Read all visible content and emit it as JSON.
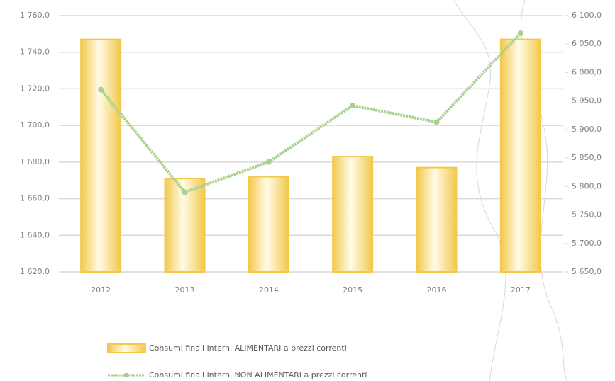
{
  "chart_data": {
    "type": "combo",
    "categories": [
      "2012",
      "2013",
      "2014",
      "2015",
      "2016",
      "2017"
    ],
    "series": [
      {
        "name": "Consumi finali interni ALIMENTARI a prezzi correnti",
        "type": "bar",
        "color": "#f2c94c",
        "values": [
          1747,
          1671,
          1672,
          1683,
          1677,
          1747
        ]
      },
      {
        "name": "Consumi finali interni NON ALIMENTARI a prezzi correnti",
        "type": "line",
        "axis": "y2",
        "color": "#a9d18e",
        "values": [
          5970,
          5790,
          5843,
          5942,
          5913,
          6069
        ]
      }
    ],
    "ylim": [
      1620,
      1760
    ],
    "yticks": [
      {
        "value": 1620,
        "label": "1 620,0"
      },
      {
        "value": 1640,
        "label": "1 640,0"
      },
      {
        "value": 1660,
        "label": "1 660,0"
      },
      {
        "value": 1680,
        "label": "1 680,0"
      },
      {
        "value": 1700,
        "label": "1 700,0"
      },
      {
        "value": 1720,
        "label": "1 720,0"
      },
      {
        "value": 1740,
        "label": "1 740,0"
      },
      {
        "value": 1760,
        "label": "1 760,0"
      }
    ],
    "y2lim": [
      5650,
      6100
    ],
    "y2ticks": [
      {
        "value": 5650,
        "label": "5 650,0"
      },
      {
        "value": 5700,
        "label": "5 700,0"
      },
      {
        "value": 5750,
        "label": "5 750,0"
      },
      {
        "value": 5800,
        "label": "5 800,0"
      },
      {
        "value": 5850,
        "label": "5 850,0"
      },
      {
        "value": 5900,
        "label": "5 900,0"
      },
      {
        "value": 5950,
        "label": "5 950,0"
      },
      {
        "value": 6000,
        "label": "6 000,0"
      },
      {
        "value": 6050,
        "label": "6 050,0"
      },
      {
        "value": 6100,
        "label": "6 100,0"
      }
    ],
    "grid": true,
    "legend": "bottom"
  }
}
